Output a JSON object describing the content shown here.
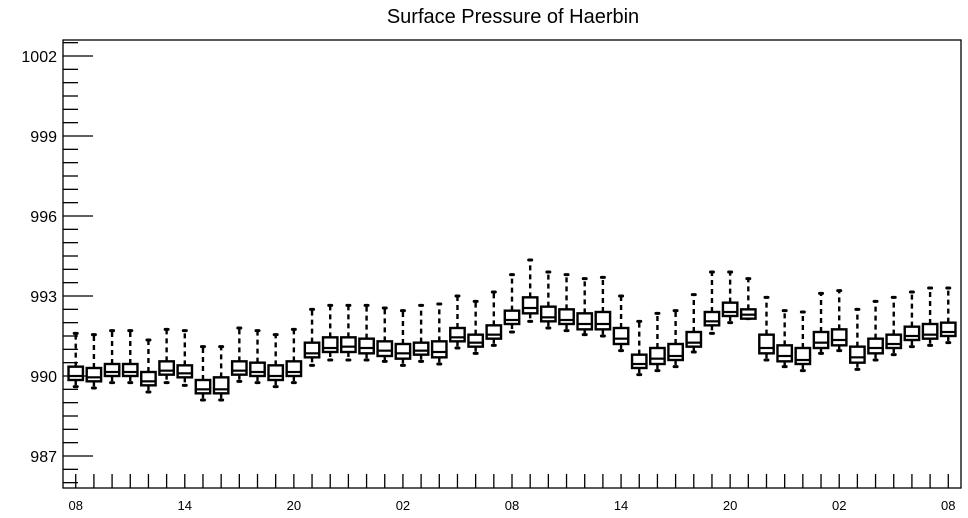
{
  "chart_data": {
    "type": "boxplot",
    "title": "Surface Pressure of Haerbin",
    "xlabel": "",
    "ylabel": "",
    "ylim": [
      985.8,
      1002.6
    ],
    "yticks": [
      987,
      990,
      993,
      996,
      999,
      1002
    ],
    "ytick_labels": [
      "987",
      "990",
      "993",
      "996",
      "999",
      "1002"
    ],
    "y_minor_step": 0.5,
    "xlim": [
      -0.7,
      40.2
    ],
    "xticks": [
      0,
      5,
      10,
      15,
      20,
      25,
      30,
      35,
      40
    ],
    "xtick_labels": [
      "08",
      "14",
      "20",
      "02",
      "08",
      "14",
      "20",
      "02",
      "08"
    ],
    "grid": false,
    "boxes": [
      {
        "x": 0,
        "q1": 989.85,
        "median": 990.0,
        "q3": 990.35,
        "whislo": 989.6,
        "whishi": 991.6
      },
      {
        "x": 1,
        "q1": 989.8,
        "median": 989.95,
        "q3": 990.3,
        "whislo": 989.55,
        "whishi": 991.55
      },
      {
        "x": 2,
        "q1": 990.0,
        "median": 990.15,
        "q3": 990.45,
        "whislo": 989.75,
        "whishi": 991.7
      },
      {
        "x": 3,
        "q1": 990.0,
        "median": 990.15,
        "q3": 990.45,
        "whislo": 989.75,
        "whishi": 991.7
      },
      {
        "x": 4,
        "q1": 989.65,
        "median": 989.8,
        "q3": 990.15,
        "whislo": 989.4,
        "whishi": 991.35
      },
      {
        "x": 5,
        "q1": 990.05,
        "median": 990.2,
        "q3": 990.55,
        "whislo": 989.75,
        "whishi": 991.75
      },
      {
        "x": 6,
        "q1": 989.95,
        "median": 990.1,
        "q3": 990.4,
        "whislo": 989.65,
        "whishi": 991.7
      },
      {
        "x": 7,
        "q1": 989.35,
        "median": 989.5,
        "q3": 989.85,
        "whislo": 989.1,
        "whishi": 991.1
      },
      {
        "x": 8,
        "q1": 989.35,
        "median": 989.5,
        "q3": 989.95,
        "whislo": 989.1,
        "whishi": 991.1
      },
      {
        "x": 9,
        "q1": 990.05,
        "median": 990.2,
        "q3": 990.55,
        "whislo": 989.8,
        "whishi": 991.8
      },
      {
        "x": 10,
        "q1": 990.0,
        "median": 990.15,
        "q3": 990.5,
        "whislo": 989.75,
        "whishi": 991.7
      },
      {
        "x": 11,
        "q1": 989.85,
        "median": 990.0,
        "q3": 990.4,
        "whislo": 989.6,
        "whishi": 991.55
      },
      {
        "x": 12,
        "q1": 990.0,
        "median": 990.15,
        "q3": 990.55,
        "whislo": 989.75,
        "whishi": 991.75
      },
      {
        "x": 13,
        "q1": 990.7,
        "median": 990.85,
        "q3": 991.25,
        "whislo": 990.4,
        "whishi": 992.5
      },
      {
        "x": 14,
        "q1": 990.9,
        "median": 991.05,
        "q3": 991.45,
        "whislo": 990.6,
        "whishi": 992.65
      },
      {
        "x": 15,
        "q1": 990.9,
        "median": 991.1,
        "q3": 991.45,
        "whislo": 990.6,
        "whishi": 992.65
      },
      {
        "x": 16,
        "q1": 990.85,
        "median": 991.05,
        "q3": 991.4,
        "whislo": 990.6,
        "whishi": 992.65
      },
      {
        "x": 17,
        "q1": 990.75,
        "median": 990.95,
        "q3": 991.3,
        "whislo": 990.55,
        "whishi": 992.55
      },
      {
        "x": 18,
        "q1": 990.65,
        "median": 990.85,
        "q3": 991.2,
        "whislo": 990.4,
        "whishi": 992.45
      },
      {
        "x": 19,
        "q1": 990.8,
        "median": 990.95,
        "q3": 991.25,
        "whislo": 990.55,
        "whishi": 992.65
      },
      {
        "x": 20,
        "q1": 990.7,
        "median": 990.9,
        "q3": 991.3,
        "whislo": 990.45,
        "whishi": 992.7
      },
      {
        "x": 21,
        "q1": 991.3,
        "median": 991.45,
        "q3": 991.8,
        "whislo": 991.05,
        "whishi": 993.0
      },
      {
        "x": 22,
        "q1": 991.1,
        "median": 991.25,
        "q3": 991.55,
        "whislo": 990.85,
        "whishi": 992.8
      },
      {
        "x": 23,
        "q1": 991.4,
        "median": 991.55,
        "q3": 991.9,
        "whislo": 991.15,
        "whishi": 993.15
      },
      {
        "x": 24,
        "q1": 991.95,
        "median": 992.1,
        "q3": 992.45,
        "whislo": 991.65,
        "whishi": 993.8
      },
      {
        "x": 25,
        "q1": 992.35,
        "median": 992.55,
        "q3": 992.95,
        "whislo": 992.05,
        "whishi": 994.35
      },
      {
        "x": 26,
        "q1": 992.05,
        "median": 992.2,
        "q3": 992.6,
        "whislo": 991.8,
        "whishi": 993.9
      },
      {
        "x": 27,
        "q1": 991.95,
        "median": 992.1,
        "q3": 992.5,
        "whislo": 991.7,
        "whishi": 993.8
      },
      {
        "x": 28,
        "q1": 991.75,
        "median": 991.95,
        "q3": 992.35,
        "whislo": 991.55,
        "whishi": 993.65
      },
      {
        "x": 29,
        "q1": 991.75,
        "median": 991.95,
        "q3": 992.4,
        "whislo": 991.5,
        "whishi": 993.7
      },
      {
        "x": 30,
        "q1": 991.2,
        "median": 991.4,
        "q3": 991.8,
        "whislo": 990.95,
        "whishi": 993.0
      },
      {
        "x": 31,
        "q1": 990.3,
        "median": 990.45,
        "q3": 990.8,
        "whislo": 990.05,
        "whishi": 992.05
      },
      {
        "x": 32,
        "q1": 990.45,
        "median": 990.65,
        "q3": 991.05,
        "whislo": 990.2,
        "whishi": 992.35
      },
      {
        "x": 33,
        "q1": 990.6,
        "median": 990.75,
        "q3": 991.2,
        "whislo": 990.35,
        "whishi": 992.45
      },
      {
        "x": 34,
        "q1": 991.1,
        "median": 991.25,
        "q3": 991.65,
        "whislo": 990.9,
        "whishi": 993.05
      },
      {
        "x": 35,
        "q1": 991.9,
        "median": 992.05,
        "q3": 992.4,
        "whislo": 991.6,
        "whishi": 993.9
      },
      {
        "x": 36,
        "q1": 992.25,
        "median": 992.4,
        "q3": 992.75,
        "whislo": 992.0,
        "whishi": 993.9
      },
      {
        "x": 37,
        "q1": 992.15,
        "median": 992.3,
        "q3": 992.5,
        "whislo": 992.15,
        "whishi": 993.65
      },
      {
        "x": 38,
        "q1": 990.85,
        "median": 991.05,
        "q3": 991.55,
        "whislo": 990.6,
        "whishi": 992.95
      },
      {
        "x": 39,
        "q1": 990.55,
        "median": 990.75,
        "q3": 991.15,
        "whislo": 990.35,
        "whishi": 992.45
      },
      {
        "x": 40,
        "q1": 990.45,
        "median": 990.6,
        "q3": 991.05,
        "whislo": 990.2,
        "whishi": 992.4
      },
      {
        "x": 41,
        "q1": 991.05,
        "median": 991.25,
        "q3": 991.65,
        "whislo": 990.85,
        "whishi": 993.1
      },
      {
        "x": 42,
        "q1": 991.15,
        "median": 991.35,
        "q3": 991.75,
        "whislo": 990.95,
        "whishi": 993.2
      },
      {
        "x": 43,
        "q1": 990.5,
        "median": 990.7,
        "q3": 991.1,
        "whislo": 990.25,
        "whishi": 992.5
      },
      {
        "x": 44,
        "q1": 990.85,
        "median": 991.05,
        "q3": 991.4,
        "whislo": 990.6,
        "whishi": 992.8
      },
      {
        "x": 45,
        "q1": 991.05,
        "median": 991.2,
        "q3": 991.55,
        "whislo": 990.8,
        "whishi": 992.95
      },
      {
        "x": 46,
        "q1": 991.35,
        "median": 991.5,
        "q3": 991.85,
        "whislo": 991.1,
        "whishi": 993.15
      },
      {
        "x": 47,
        "q1": 991.4,
        "median": 991.55,
        "q3": 991.95,
        "whislo": 991.15,
        "whishi": 993.3
      },
      {
        "x": 48,
        "q1": 991.5,
        "median": 991.65,
        "q3": 992.0,
        "whislo": 991.25,
        "whishi": 993.3
      }
    ]
  }
}
